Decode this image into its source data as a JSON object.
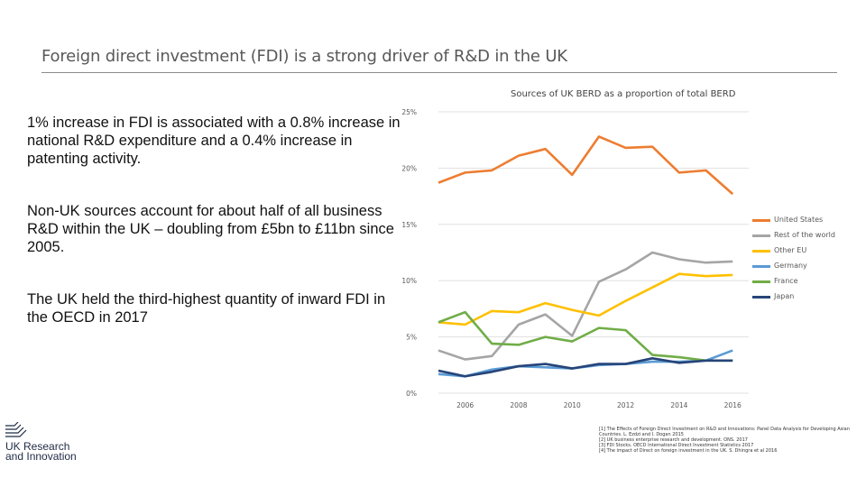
{
  "slide": {
    "title": "Foreign direct investment (FDI) is a strong driver of R&D in the UK",
    "bullets": [
      "1% increase in FDI is associated with a 0.8% increase in national R&D expenditure and a 0.4% increase in patenting activity.",
      "Non-UK sources account for about half of all business R&D within the UK – doubling from £5bn to £11bn since 2005.",
      "The UK held the third-highest quantity of inward FDI in the OECD in 2017"
    ],
    "footnotes": [
      "[1] The Effects of Foreign Direct Investment on R&D and Innovations: Panel Data Analysis for Developing Asian Countries. L. Ezdzi and I. Dogan 2015",
      "[2] UK business enterprise research and development. ONS. 2017",
      "[3] FDI Stocks. OECD International Direct Investment Statistics 2017",
      "[4] The impact of Direct on foreign investment in the UK. S. Dhingra et al 2016"
    ],
    "logo": {
      "line1": "UK Research",
      "line2": "and Innovation"
    }
  },
  "chart_data": {
    "type": "line",
    "title": "Sources of UK BERD as a proportion of total BERD",
    "x": [
      2005,
      2006,
      2007,
      2008,
      2009,
      2010,
      2011,
      2012,
      2013,
      2014,
      2015,
      2016
    ],
    "x_tick_labels": [
      "2006",
      "2008",
      "2010",
      "2012",
      "2014",
      "2016"
    ],
    "x_ticks": [
      2006,
      2008,
      2010,
      2012,
      2014,
      2016
    ],
    "y_tick_labels": [
      "0%",
      "5%",
      "10%",
      "15%",
      "20%",
      "25%"
    ],
    "y_ticks": [
      0,
      5,
      10,
      15,
      20,
      25
    ],
    "ylim": [
      0,
      25
    ],
    "grid": true,
    "legend_position": "right",
    "series": [
      {
        "name": "United States",
        "color": "#ED7D31",
        "values": [
          18.7,
          19.6,
          19.8,
          21.1,
          21.7,
          19.4,
          22.8,
          21.8,
          21.9,
          19.6,
          19.8,
          17.7
        ]
      },
      {
        "name": "Rest of the world",
        "color": "#A5A5A5",
        "values": [
          3.8,
          3.0,
          3.3,
          6.1,
          7.0,
          5.1,
          9.9,
          11.0,
          12.5,
          11.9,
          11.6,
          11.7
        ]
      },
      {
        "name": "Other EU",
        "color": "#FFC000",
        "values": [
          6.3,
          6.1,
          7.3,
          7.2,
          8.0,
          7.4,
          6.9,
          8.2,
          9.4,
          10.6,
          10.4,
          10.5
        ]
      },
      {
        "name": "Germany",
        "color": "#5B9BD5",
        "values": [
          1.7,
          1.5,
          2.1,
          2.4,
          2.3,
          2.2,
          2.5,
          2.6,
          2.8,
          2.8,
          2.9,
          3.8
        ]
      },
      {
        "name": "France",
        "color": "#70AD47",
        "values": [
          6.3,
          7.2,
          4.4,
          4.3,
          5.0,
          4.6,
          5.8,
          5.6,
          3.4,
          3.2,
          2.9,
          2.9
        ]
      },
      {
        "name": "Japan",
        "color": "#264478",
        "values": [
          2.0,
          1.5,
          1.9,
          2.4,
          2.6,
          2.2,
          2.6,
          2.6,
          3.1,
          2.7,
          2.9,
          2.9
        ]
      }
    ]
  }
}
